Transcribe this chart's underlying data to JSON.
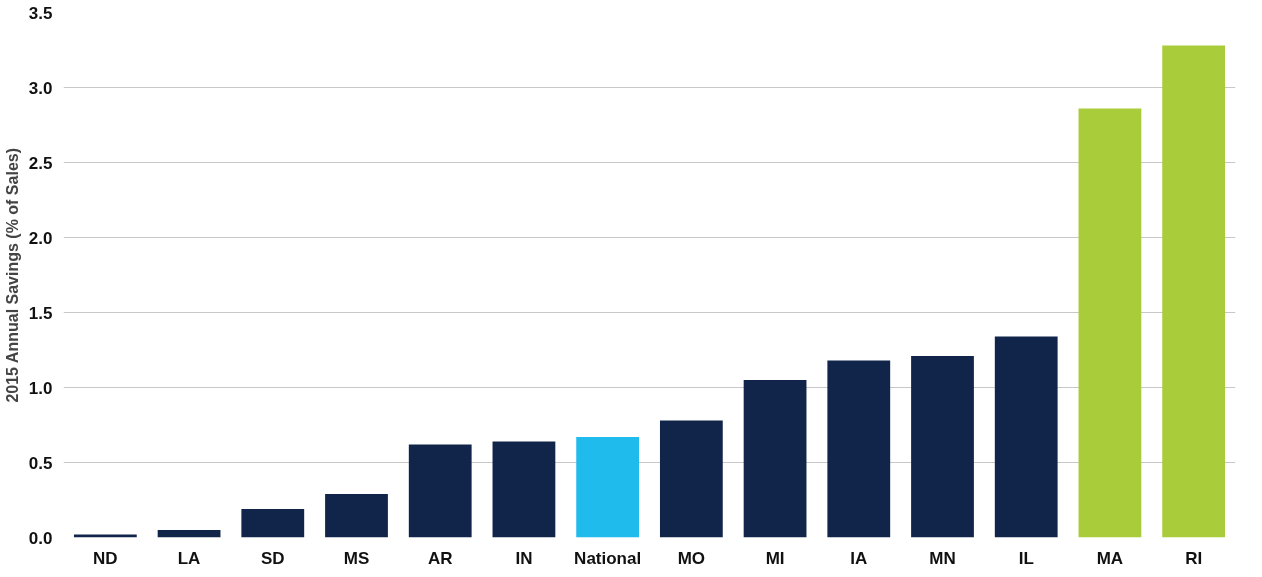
{
  "chart_data": {
    "type": "bar",
    "ylabel": "2015 Annual Savings (% of Sales)",
    "categories": [
      "ND",
      "LA",
      "SD",
      "MS",
      "AR",
      "IN",
      "National",
      "MO",
      "MI",
      "IA",
      "MN",
      "IL",
      "MA",
      "RI"
    ],
    "values": [
      0.02,
      0.05,
      0.19,
      0.29,
      0.62,
      0.64,
      0.67,
      0.78,
      1.05,
      1.18,
      1.21,
      1.34,
      2.86,
      3.28
    ],
    "colors": [
      "#11244a",
      "#11244a",
      "#11244a",
      "#11244a",
      "#11244a",
      "#11244a",
      "#1fbbec",
      "#11244a",
      "#11244a",
      "#11244a",
      "#11244a",
      "#11244a",
      "#a9cc3a",
      "#a9cc3a"
    ],
    "ylim": [
      0,
      3.5
    ],
    "yticks": [
      {
        "value": 0,
        "label": "0.0"
      },
      {
        "value": 0.5,
        "label": "0.5"
      },
      {
        "value": 1,
        "label": "1.0"
      },
      {
        "value": 1.5,
        "label": "1.5"
      },
      {
        "value": 2,
        "label": "2.0"
      },
      {
        "value": 2.5,
        "label": "2.5"
      },
      {
        "value": 3,
        "label": "3.0"
      },
      {
        "value": 3.5,
        "label": "3.5"
      }
    ],
    "grid": "y"
  }
}
